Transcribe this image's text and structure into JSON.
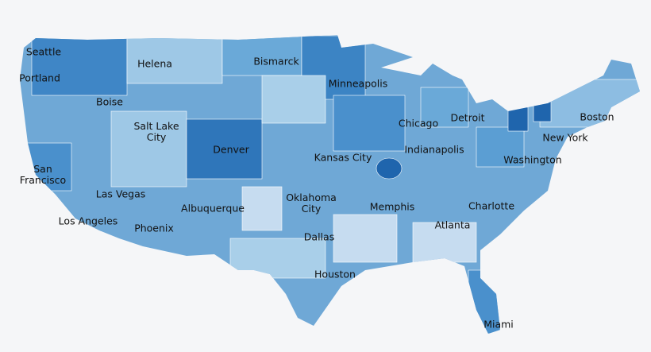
{
  "map": {
    "cities": [
      "Seattle",
      "Portland",
      "Boise",
      "Helena",
      "Bismarck",
      "Minneapolis",
      "Salt Lake City",
      "Denver",
      "Chicago",
      "Detroit",
      "Boston",
      "New York",
      "Indianapolis",
      "Kansas City",
      "Washington",
      "San Francisco",
      "Las Vegas",
      "Albuquerque",
      "Oklahoma City",
      "Memphis",
      "Charlotte",
      "Los Angeles",
      "Phoenix",
      "Atlanta",
      "Dallas",
      "Houston",
      "Miami"
    ]
  }
}
